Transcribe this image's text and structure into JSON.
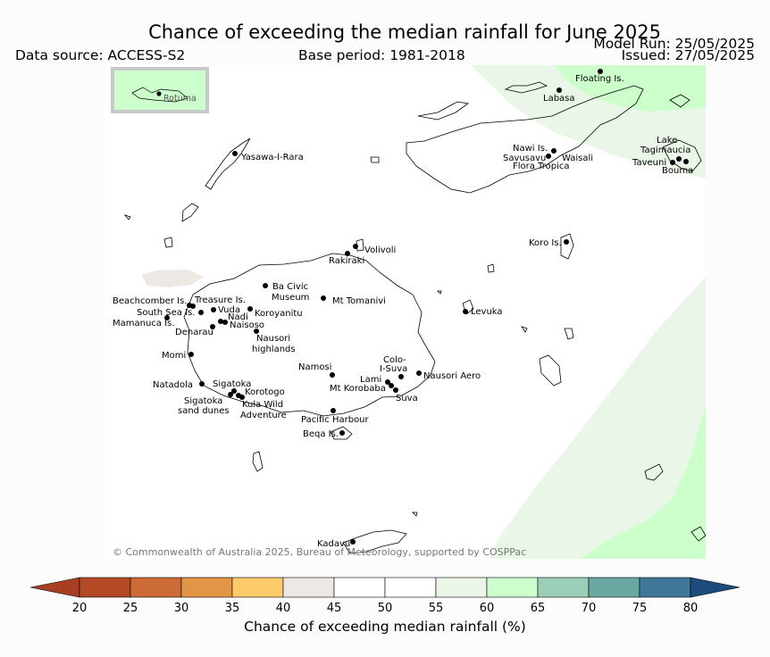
{
  "header": {
    "title": "Chance of exceeding the median rainfall for June 2025",
    "data_source": "Data source: ACCESS-S2",
    "base_period": "Base period: 1981-2018",
    "model_run": "Model Run: 25/05/2025",
    "issued": "Issued: 27/05/2025"
  },
  "inset": {
    "label": "Rotuma"
  },
  "copyright": "© Commonwealth of Australia 2025, Bureau of Meteorology, supported by COSPPac",
  "places": [
    {
      "name": "Floating Is."
    },
    {
      "name": "Labasa"
    },
    {
      "name": "Nawi Is."
    },
    {
      "name": "Savusavu"
    },
    {
      "name": "Waisali"
    },
    {
      "name": "Flora Tropica"
    },
    {
      "name": "Lake"
    },
    {
      "name": "Tagimaucia"
    },
    {
      "name": "Taveuni"
    },
    {
      "name": "Bouma"
    },
    {
      "name": "Yasawa-I-Rara"
    },
    {
      "name": "Koro Is."
    },
    {
      "name": "Volivoli"
    },
    {
      "name": "Rakiraki"
    },
    {
      "name": "Ba Civic"
    },
    {
      "name": "Museum"
    },
    {
      "name": "Mt Tomanivi"
    },
    {
      "name": "Beachcomber Is."
    },
    {
      "name": "Treasure Is."
    },
    {
      "name": "South Sea Is."
    },
    {
      "name": "Vuda"
    },
    {
      "name": "Koroyanitu"
    },
    {
      "name": "Nadi"
    },
    {
      "name": "Mamanuca Is."
    },
    {
      "name": "Naisoso"
    },
    {
      "name": "Denarau"
    },
    {
      "name": "Levuka"
    },
    {
      "name": "Nausori"
    },
    {
      "name": "highlands"
    },
    {
      "name": "Momi"
    },
    {
      "name": "Colo-"
    },
    {
      "name": "I-Suva"
    },
    {
      "name": "Namosi"
    },
    {
      "name": "Nausori Aero"
    },
    {
      "name": "Lami"
    },
    {
      "name": "Mt Korobaba"
    },
    {
      "name": "Suva"
    },
    {
      "name": "Natadola"
    },
    {
      "name": "Sigatoka"
    },
    {
      "name": "Korotogo"
    },
    {
      "name": "Sigatoka"
    },
    {
      "name": "sand dunes"
    },
    {
      "name": "Kula Wild"
    },
    {
      "name": "Adventure"
    },
    {
      "name": "Pacific Harbour"
    },
    {
      "name": "Beqa Is."
    },
    {
      "name": "Kadavu"
    }
  ],
  "legend": {
    "title": "Chance of exceeding median rainfall (%)",
    "ticks": [
      "20",
      "25",
      "30",
      "35",
      "40",
      "45",
      "50",
      "55",
      "60",
      "65",
      "70",
      "75",
      "80"
    ],
    "colors": [
      "#a83f22",
      "#b44a25",
      "#cd6b38",
      "#e29545",
      "#fbcb6b",
      "#ede8e4",
      "#ffffff",
      "#ffffff",
      "#eaf6e8",
      "#ccffcc",
      "#9ccdb6",
      "#6aa8a4",
      "#3e7797",
      "#1b4c7b"
    ]
  }
}
